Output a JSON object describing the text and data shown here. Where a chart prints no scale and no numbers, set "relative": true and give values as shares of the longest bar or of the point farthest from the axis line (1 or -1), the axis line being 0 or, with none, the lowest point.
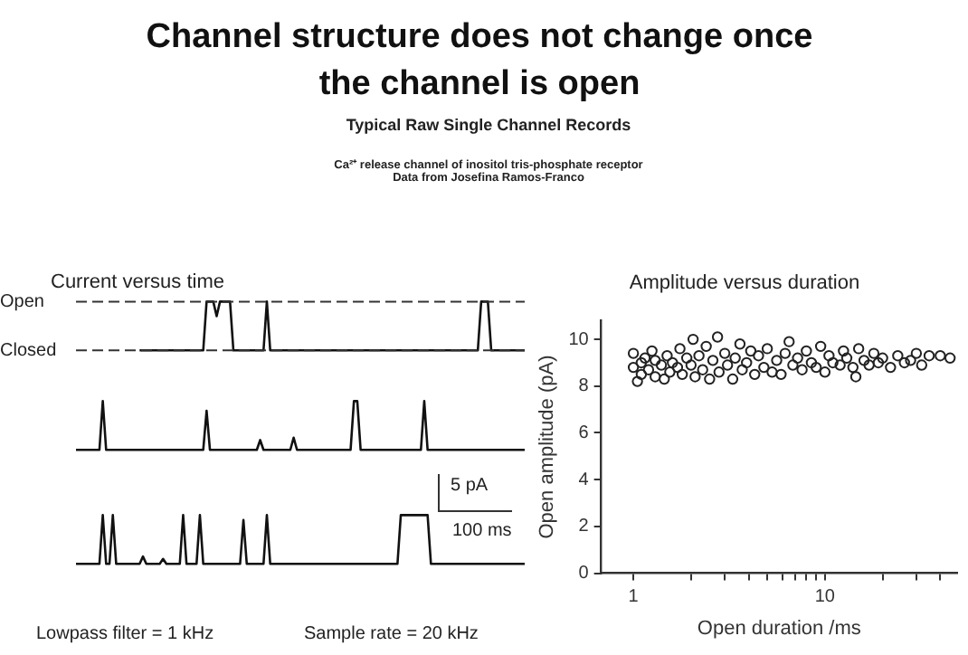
{
  "chart_data": [
    {
      "type": "line",
      "relative": true,
      "title": "Current versus time",
      "categories": [
        null,
        null,
        null,
        null,
        null,
        null,
        null,
        null,
        null,
        null,
        null,
        null,
        null,
        null,
        null,
        null,
        null,
        null,
        null,
        null,
        null,
        null,
        null,
        null,
        null,
        null,
        null,
        null,
        null,
        null,
        null,
        null,
        null,
        null,
        null,
        null,
        null,
        null,
        null,
        null,
        null,
        null,
        null,
        null,
        null,
        null,
        null,
        null,
        null,
        null,
        null,
        null,
        null,
        null,
        null,
        null,
        null,
        null,
        null,
        null,
        null,
        null,
        null,
        null,
        null,
        null,
        null,
        null,
        null,
        null,
        null,
        null,
        null,
        null,
        null,
        null,
        null,
        null,
        null,
        null,
        null,
        null,
        null,
        null,
        null,
        null,
        null,
        null,
        null,
        null,
        null,
        null,
        null,
        null,
        null,
        null,
        null,
        null,
        null,
        null,
        null,
        null,
        null,
        null,
        null,
        null,
        null,
        null,
        null,
        null,
        null,
        null,
        null,
        null,
        null,
        null,
        null,
        null,
        null,
        null,
        null,
        null,
        null,
        null,
        null,
        null,
        null,
        null,
        null,
        null,
        null,
        null,
        null,
        null,
        null
      ],
      "series": [
        {
          "color": "#111111",
          "values": [
            null,
            null,
            null,
            null,
            null,
            null,
            null,
            null,
            null,
            null,
            null,
            null,
            null,
            null,
            null,
            null,
            null,
            null,
            null,
            0,
            0,
            0,
            0,
            0,
            0,
            0,
            0,
            0,
            0,
            0,
            0,
            0,
            0,
            0,
            0,
            0,
            0,
            0,
            0,
            1,
            1,
            1,
            0.7,
            1,
            1,
            1,
            1,
            0,
            0,
            0,
            0,
            0,
            0,
            0,
            0,
            0,
            0,
            1,
            0,
            0,
            0,
            0,
            0,
            0,
            0,
            0,
            0,
            0,
            0,
            0,
            0,
            0,
            0,
            0,
            0,
            0,
            0,
            0,
            0,
            0,
            0,
            0,
            0,
            0,
            0,
            0,
            0,
            0,
            0,
            0,
            0,
            0,
            0,
            0,
            0,
            0,
            0,
            0,
            0,
            0,
            0,
            0,
            0,
            0,
            0,
            0,
            0,
            0,
            0,
            0,
            0,
            0,
            0,
            0,
            0,
            0,
            0,
            0,
            0,
            0,
            0,
            1,
            1,
            1,
            0,
            0,
            0,
            0,
            0,
            0,
            0,
            0,
            0,
            0,
            0
          ]
        }
      ],
      "ref_lines": [
        {
          "axis": "y",
          "value": 1,
          "label": "Open",
          "line_style": "dashed"
        },
        {
          "axis": "y",
          "value": 0,
          "label": "Closed",
          "line_style": "dashed"
        }
      ],
      "annotations": [
        "Channel structure does not change once the channel is open",
        "Typical Raw Single Channel Records",
        "Ca²⁺ release channel of inositol tris-phosphate receptor",
        "Data from Josefina Ramos-Franco"
      ]
    },
    {
      "type": "line",
      "relative": true,
      "categories": [
        null,
        null,
        null,
        null,
        null,
        null,
        null,
        null,
        null,
        null,
        null,
        null,
        null,
        null,
        null,
        null,
        null,
        null,
        null,
        null,
        null,
        null,
        null,
        null,
        null,
        null,
        null,
        null,
        null,
        null,
        null,
        null,
        null,
        null,
        null,
        null,
        null,
        null,
        null,
        null,
        null,
        null,
        null,
        null,
        null,
        null,
        null,
        null,
        null,
        null,
        null,
        null,
        null,
        null,
        null,
        null,
        null,
        null,
        null,
        null,
        null,
        null,
        null,
        null,
        null,
        null,
        null,
        null,
        null,
        null,
        null,
        null,
        null,
        null,
        null,
        null,
        null,
        null,
        null,
        null,
        null,
        null,
        null,
        null,
        null,
        null,
        null,
        null,
        null,
        null,
        null,
        null,
        null,
        null,
        null,
        null,
        null,
        null,
        null,
        null,
        null,
        null,
        null,
        null,
        null,
        null,
        null,
        null,
        null,
        null,
        null,
        null,
        null,
        null,
        null,
        null,
        null,
        null,
        null,
        null,
        null,
        null,
        null,
        null,
        null,
        null,
        null,
        null,
        null,
        null,
        null,
        null,
        null,
        null,
        null
      ],
      "series": [
        {
          "color": "#111111",
          "values": [
            0,
            0,
            0,
            0,
            0,
            0,
            0,
            0,
            1,
            0,
            0,
            0,
            0,
            0,
            0,
            0,
            0,
            0,
            0,
            0,
            0,
            0,
            0,
            0,
            0,
            0,
            0,
            0,
            0,
            0,
            0,
            0,
            0,
            0,
            0,
            0,
            0,
            0,
            0,
            0.8,
            0,
            0,
            0,
            0,
            0,
            0,
            0,
            0,
            0,
            0,
            0,
            0,
            0,
            0,
            0,
            0.2,
            0,
            0,
            0,
            0,
            0,
            0,
            0,
            0,
            0,
            0.25,
            0,
            0,
            0,
            0,
            0,
            0,
            0,
            0,
            0,
            0,
            0,
            0,
            0,
            0,
            0,
            0,
            0,
            1,
            1,
            0,
            0,
            0,
            0,
            0,
            0,
            0,
            0,
            0,
            0,
            0,
            0,
            0,
            0,
            0,
            0,
            0,
            0,
            0,
            1,
            0,
            0,
            0,
            0,
            0,
            0,
            0,
            0,
            0,
            0,
            0,
            0,
            0,
            0,
            0,
            0,
            0,
            0,
            0,
            0,
            0,
            0,
            0,
            0,
            0,
            0,
            0,
            0,
            0,
            0
          ]
        }
      ]
    },
    {
      "type": "line",
      "relative": true,
      "categories": [
        null,
        null,
        null,
        null,
        null,
        null,
        null,
        null,
        null,
        null,
        null,
        null,
        null,
        null,
        null,
        null,
        null,
        null,
        null,
        null,
        null,
        null,
        null,
        null,
        null,
        null,
        null,
        null,
        null,
        null,
        null,
        null,
        null,
        null,
        null,
        null,
        null,
        null,
        null,
        null,
        null,
        null,
        null,
        null,
        null,
        null,
        null,
        null,
        null,
        null,
        null,
        null,
        null,
        null,
        null,
        null,
        null,
        null,
        null,
        null,
        null,
        null,
        null,
        null,
        null,
        null,
        null,
        null,
        null,
        null,
        null,
        null,
        null,
        null,
        null,
        null,
        null,
        null,
        null,
        null,
        null,
        null,
        null,
        null,
        null,
        null,
        null,
        null,
        null,
        null,
        null,
        null,
        null,
        null,
        null,
        null,
        null,
        null,
        null,
        null,
        null,
        null,
        null,
        null,
        null,
        null,
        null,
        null,
        null,
        null,
        null,
        null,
        null,
        null,
        null,
        null,
        null,
        null,
        null,
        null,
        null,
        null,
        null,
        null,
        null,
        null,
        null,
        null,
        null,
        null,
        null,
        null,
        null,
        null,
        null
      ],
      "series": [
        {
          "color": "#111111",
          "values": [
            0,
            0,
            0,
            0,
            0,
            0,
            0,
            0,
            1,
            0,
            0,
            1,
            0,
            0,
            0,
            0,
            0,
            0,
            0,
            0,
            0.15,
            0,
            0,
            0,
            0,
            0,
            0.1,
            0,
            0,
            0,
            0,
            0,
            1,
            0,
            0,
            0,
            0,
            1,
            0,
            0,
            0,
            0,
            0,
            0,
            0,
            0,
            0,
            0,
            0,
            0,
            0.9,
            0,
            0,
            0,
            0,
            0,
            0,
            1,
            0,
            0,
            0,
            0,
            0,
            0,
            0,
            0,
            0,
            0,
            0,
            0,
            0,
            0,
            0,
            0,
            0,
            0,
            0,
            0,
            0,
            0,
            0,
            0,
            0,
            0,
            0,
            0,
            0,
            0,
            0,
            0,
            0,
            0,
            0,
            0,
            0,
            0,
            0,
            1,
            1,
            1,
            1,
            1,
            1,
            1,
            1,
            1,
            0,
            0,
            0,
            0,
            0,
            0,
            0,
            0,
            0,
            0,
            0,
            0,
            0,
            0,
            0,
            0,
            0,
            0,
            0,
            0,
            0,
            0,
            0,
            0,
            0,
            0,
            0,
            0,
            0
          ]
        }
      ],
      "annotations": [
        "5 pA",
        "100 ms",
        "Lowpass filter = 1 kHz",
        "Sample rate = 20 kHz"
      ]
    },
    {
      "type": "scatter",
      "title": "Amplitude versus duration",
      "xlabel": "Open duration /ms",
      "ylabel": "Open amplitude (pA)",
      "log": "x",
      "marker": "circle",
      "grid": false,
      "xlim": [
        0.68,
        49
      ],
      "xticks": [
        1,
        {
          "value": 2,
          "label": null
        },
        {
          "value": 3,
          "label": null
        },
        {
          "value": 4,
          "label": null
        },
        {
          "value": 5,
          "label": null
        },
        {
          "value": 6,
          "label": null
        },
        {
          "value": 7,
          "label": null
        },
        {
          "value": 8,
          "label": null
        },
        {
          "value": 9,
          "label": null
        },
        10,
        {
          "value": 20,
          "label": null
        },
        {
          "value": 30,
          "label": null
        },
        {
          "value": 40,
          "label": null
        }
      ],
      "ylim": [
        0,
        10.8
      ],
      "yticks": [
        0,
        2,
        4,
        6,
        8,
        10
      ],
      "series": [
        {
          "color": "#222222",
          "x": [
            1.0,
            1.0,
            1.05,
            1.1,
            1.1,
            1.15,
            1.2,
            1.25,
            1.3,
            1.3,
            1.4,
            1.45,
            1.5,
            1.55,
            1.6,
            1.7,
            1.75,
            1.8,
            1.9,
            2.0,
            2.05,
            2.1,
            2.2,
            2.3,
            2.4,
            2.5,
            2.6,
            2.75,
            2.8,
            3.0,
            3.1,
            3.3,
            3.4,
            3.6,
            3.7,
            3.9,
            4.1,
            4.3,
            4.5,
            4.8,
            5.0,
            5.3,
            5.6,
            5.9,
            6.2,
            6.5,
            6.8,
            7.2,
            7.6,
            8.0,
            8.5,
            9.0,
            9.5,
            10,
            10.5,
            11,
            12,
            12.5,
            13,
            14,
            14.5,
            15,
            16,
            17,
            18,
            19,
            20,
            22,
            24,
            26,
            28,
            30,
            32,
            35,
            40,
            45
          ],
          "values": [
            8.8,
            9.4,
            8.2,
            9.0,
            8.5,
            9.2,
            8.7,
            9.5,
            8.4,
            9.1,
            8.9,
            8.3,
            9.3,
            8.6,
            9.0,
            8.8,
            9.6,
            8.5,
            9.2,
            8.9,
            10.0,
            8.4,
            9.3,
            8.7,
            9.7,
            8.3,
            9.1,
            10.1,
            8.6,
            9.4,
            8.9,
            8.3,
            9.2,
            9.8,
            8.7,
            9.0,
            9.5,
            8.5,
            9.3,
            8.8,
            9.6,
            8.6,
            9.1,
            8.5,
            9.4,
            9.9,
            8.9,
            9.2,
            8.7,
            9.5,
            9.0,
            8.8,
            9.7,
            8.6,
            9.3,
            9.0,
            8.9,
            9.5,
            9.2,
            8.8,
            8.4,
            9.6,
            9.1,
            8.9,
            9.4,
            9.0,
            9.2,
            8.8,
            9.3,
            9.0,
            9.1,
            9.4,
            8.9,
            9.3,
            9.3,
            9.2
          ]
        }
      ]
    }
  ]
}
